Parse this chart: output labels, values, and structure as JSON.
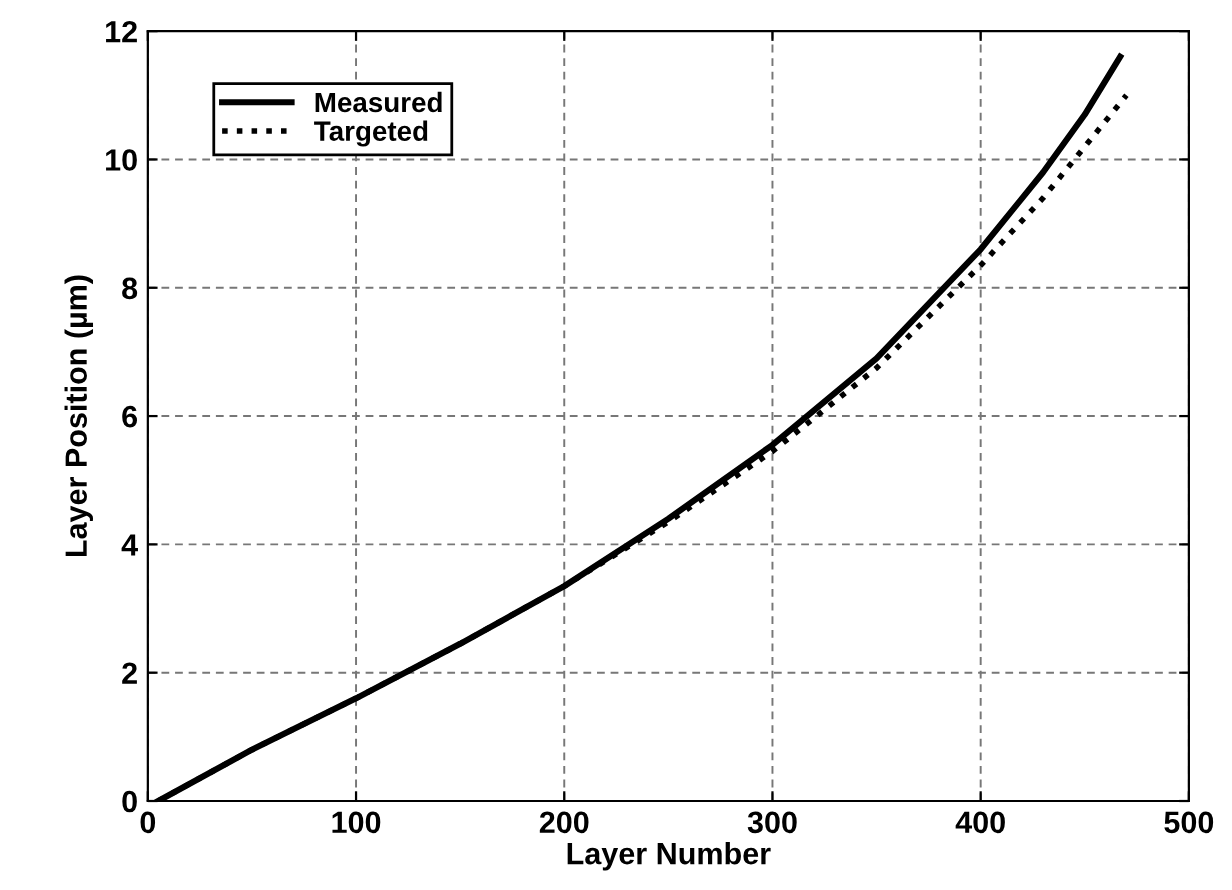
{
  "chart_data": {
    "type": "line",
    "xlabel": "Layer Number",
    "ylabel": "Layer Position (µm)",
    "xlim": [
      0,
      500
    ],
    "xticks": [
      0,
      100,
      200,
      300,
      400,
      500
    ],
    "ylim": [
      0,
      12
    ],
    "yticks": [
      0,
      2,
      4,
      6,
      8,
      10,
      12
    ],
    "grid": true,
    "legend": "top left",
    "series": [
      {
        "name": "Measured",
        "color": "#000000",
        "line_style": "solid",
        "x": [
          5,
          50,
          100,
          150,
          200,
          250,
          300,
          350,
          400,
          430,
          450,
          467
        ],
        "values": [
          0,
          0.8,
          1.6,
          2.45,
          3.35,
          4.4,
          5.55,
          6.9,
          8.6,
          9.8,
          10.7,
          11.6
        ]
      },
      {
        "name": "Targeted",
        "color": "#000000",
        "line_style": "dotted",
        "x": [
          5,
          50,
          100,
          150,
          200,
          250,
          300,
          350,
          400,
          430,
          450,
          470
        ],
        "values": [
          0,
          0.8,
          1.6,
          2.45,
          3.35,
          4.35,
          5.45,
          6.75,
          8.35,
          9.4,
          10.2,
          11.0
        ]
      }
    ]
  }
}
